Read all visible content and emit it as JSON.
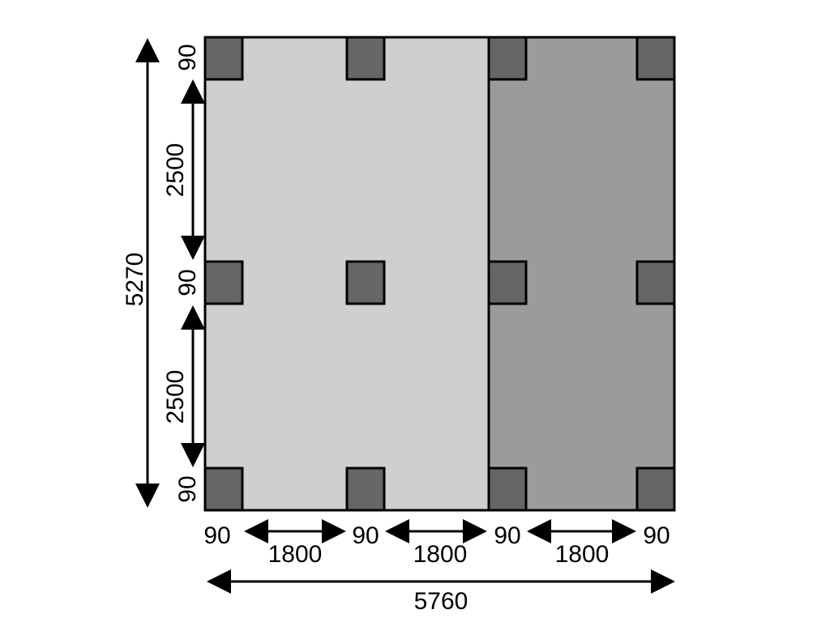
{
  "colors": {
    "open_bay": "#cfcfcf",
    "covered_bay": "#9b9b9b",
    "post": "#666666",
    "outline": "#000000"
  },
  "dimensions": {
    "total_depth": "5270",
    "total_width": "5760",
    "post_vertical": [
      "90",
      "90",
      "90"
    ],
    "span_vertical": [
      "2500",
      "2500"
    ],
    "post_horizontal": [
      "90",
      "90",
      "90",
      "90"
    ],
    "span_horizontal": [
      "1800",
      "1800",
      "1800"
    ]
  }
}
